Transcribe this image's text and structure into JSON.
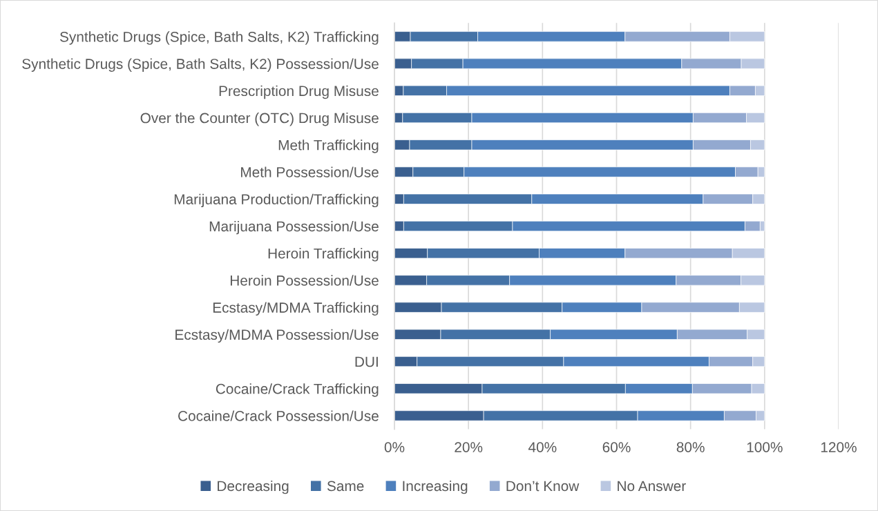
{
  "chart_data": {
    "type": "bar",
    "orientation": "horizontal",
    "stacked": true,
    "categories": [
      "Synthetic Drugs (Spice, Bath Salts, K2) Trafficking",
      "Synthetic Drugs (Spice, Bath Salts, K2) Possession/Use",
      "Prescription Drug Misuse",
      "Over the Counter (OTC) Drug Misuse",
      "Meth Trafficking",
      "Meth Possession/Use",
      "Marijuana Production/Trafficking",
      "Marijuana Possession/Use",
      "Heroin Trafficking",
      "Heroin Possession/Use",
      "Ecstasy/MDMA Trafficking",
      "Ecstasy/MDMA Possession/Use",
      "DUI",
      "Cocaine/Crack Trafficking",
      "Cocaine/Crack Possession/Use"
    ],
    "series": [
      {
        "name": "Decreasing",
        "color": "#3a5f8f",
        "values": [
          4.3,
          4.6,
          2.4,
          2.2,
          4.1,
          5.0,
          2.5,
          2.5,
          8.9,
          8.7,
          12.7,
          12.5,
          6.1,
          23.7,
          24.1
        ]
      },
      {
        "name": "Same",
        "color": "#4472a6",
        "values": [
          18.2,
          13.9,
          11.7,
          18.7,
          16.8,
          13.8,
          34.6,
          29.4,
          30.2,
          22.4,
          32.6,
          29.6,
          39.6,
          38.7,
          41.6
        ]
      },
      {
        "name": "Increasing",
        "color": "#4e80bd",
        "values": [
          39.8,
          59.1,
          76.5,
          59.8,
          59.8,
          73.3,
          46.3,
          62.8,
          23.2,
          45.0,
          21.5,
          34.3,
          39.3,
          18.1,
          23.4
        ]
      },
      {
        "name": "Don’t Know",
        "color": "#93a9d0",
        "values": [
          28.3,
          16.1,
          6.9,
          14.4,
          15.5,
          6.1,
          13.4,
          4.1,
          29.0,
          17.5,
          26.4,
          18.9,
          11.8,
          16.0,
          8.6
        ]
      },
      {
        "name": "No Answer",
        "color": "#bac7e1",
        "values": [
          9.4,
          6.3,
          2.5,
          4.9,
          3.8,
          1.8,
          3.2,
          1.2,
          8.7,
          6.4,
          6.8,
          4.7,
          3.2,
          3.5,
          2.3
        ]
      }
    ],
    "xlim": [
      0,
      120
    ],
    "xticks": [
      {
        "value": 0,
        "label": "0%"
      },
      {
        "value": 20,
        "label": "20%"
      },
      {
        "value": 40,
        "label": "40%"
      },
      {
        "value": 60,
        "label": "60%"
      },
      {
        "value": 80,
        "label": "80%"
      },
      {
        "value": 100,
        "label": "100%"
      },
      {
        "value": 120,
        "label": "120%"
      }
    ],
    "grid": "x",
    "legend": "bottom"
  }
}
